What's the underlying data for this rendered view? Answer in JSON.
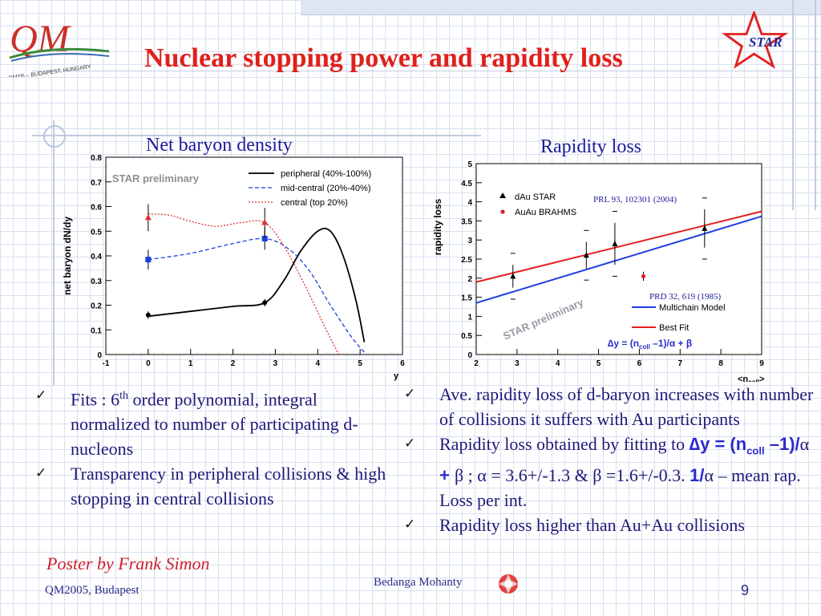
{
  "slide": {
    "title": "Nuclear stopping power and rapidity loss",
    "logo_text": "QM'05 – BUDAPEST, HUNGARY",
    "star_text": "STAR",
    "chart1_caption": "Net baryon density",
    "chart2_caption": "Rapidity loss",
    "poster": "Poster by Frank Simon",
    "footer_left": "QM2005, Budapest",
    "footer_center": "Bedanga Mohanty",
    "page_number": "9"
  },
  "bullets_left": [
    {
      "pre": "Fits : 6",
      "sup": "th",
      "post": " order polynomial, integral normalized to  number of participating d-nucleons"
    },
    {
      "text": "Transparency in peripheral collisions & high stopping in central collisions"
    }
  ],
  "bullets_right": [
    {
      "text": "Ave. rapidity loss of d-baryon increases with number of collisions it suffers with Au participants"
    },
    {
      "a": "Rapidity loss  obtained by fitting to ",
      "b": "∆y = (n",
      "c": "coll",
      "d": " –1)/",
      "e": "α",
      "f": " + ",
      "g": "β",
      "h": " ; ",
      "i": "α",
      "j": " = 3.6+/-1.3 & ",
      "k": "β",
      "l": " =1.6+/-0.3.  ",
      "m": "1/",
      "n": "α",
      "o": " – mean rap. Loss per int."
    },
    {
      "text": "Rapidity loss higher than Au+Au collisions"
    }
  ],
  "chart_data": [
    {
      "type": "line",
      "ylabel": "net baryon dN/dy",
      "xlabel": "y",
      "xlim": [
        -1,
        6
      ],
      "ylim": [
        0,
        0.8
      ],
      "xticks": [
        "-1",
        "0",
        "1",
        "2",
        "3",
        "4",
        "5",
        "6"
      ],
      "yticks": [
        "0",
        "0.1",
        "0.2",
        "0.3",
        "0.4",
        "0.5",
        "0.6",
        "0.7",
        "0.8"
      ],
      "annotation": "STAR preliminary",
      "legend": [
        "peripheral (40%-100%)",
        "mid-central (20%-40%)",
        "central (top 20%)"
      ],
      "series": [
        {
          "name": "peripheral (40%-100%)",
          "color": "#000000",
          "style": "solid",
          "points": [
            [
              0,
              0.16
            ],
            [
              2.75,
              0.21
            ]
          ],
          "errors": [
            0.015,
            0.015
          ],
          "curve": [
            [
              0,
              0.155
            ],
            [
              1,
              0.175
            ],
            [
              2,
              0.195
            ],
            [
              2.75,
              0.21
            ],
            [
              3.2,
              0.3
            ],
            [
              3.6,
              0.42
            ],
            [
              4,
              0.5
            ],
            [
              4.3,
              0.5
            ],
            [
              4.6,
              0.4
            ],
            [
              4.9,
              0.22
            ],
            [
              5.1,
              0.05
            ]
          ]
        },
        {
          "name": "mid-central (20%-40%)",
          "color": "#1d3ee0",
          "style": "dashed",
          "points": [
            [
              0,
              0.385
            ],
            [
              2.75,
              0.47
            ]
          ],
          "errors": [
            0.04,
            0.045
          ],
          "curve": [
            [
              0,
              0.385
            ],
            [
              1,
              0.41
            ],
            [
              2,
              0.45
            ],
            [
              2.75,
              0.47
            ],
            [
              3.3,
              0.43
            ],
            [
              3.8,
              0.34
            ],
            [
              4.3,
              0.2
            ],
            [
              4.8,
              0.07
            ],
            [
              5.15,
              0.0
            ]
          ]
        },
        {
          "name": "central (top 20%)",
          "color": "#e03030",
          "style": "dotted",
          "points": [
            [
              0,
              0.555
            ],
            [
              2.75,
              0.535
            ]
          ],
          "errors": [
            0.055,
            0.06
          ],
          "curve": [
            [
              0,
              0.57
            ],
            [
              0.5,
              0.565
            ],
            [
              1,
              0.54
            ],
            [
              1.6,
              0.52
            ],
            [
              2.2,
              0.535
            ],
            [
              2.75,
              0.535
            ],
            [
              3.2,
              0.44
            ],
            [
              3.7,
              0.28
            ],
            [
              4.2,
              0.1
            ],
            [
              4.5,
              0.0
            ]
          ]
        }
      ]
    },
    {
      "type": "scatter",
      "ylabel": "rapidity loss",
      "xlabel": "<n",
      "xlabel_sub": "coll",
      "xlabel_post": ">",
      "xlim": [
        2,
        9
      ],
      "ylim": [
        0,
        5
      ],
      "xticks": [
        "2",
        "3",
        "4",
        "5",
        "6",
        "7",
        "8",
        "9"
      ],
      "yticks": [
        "0",
        "0.5",
        "1",
        "1.5",
        "2",
        "2.5",
        "3",
        "3.5",
        "4",
        "4.5",
        "5"
      ],
      "annotation": "STAR preliminary",
      "ref1": "PRL 93, 102301 (2004)",
      "ref2": "PRD 32, 619 (1985)",
      "formula": "∆y = (n",
      "formula_sub": "coll",
      "formula_post": " –1)/α + β",
      "legend": [
        "dAu STAR",
        "AuAu BRAHMS",
        "Multichain Model",
        "Best Fit"
      ],
      "series": [
        {
          "name": "dAu STAR",
          "color": "#000000",
          "marker": "triangle",
          "points": [
            [
              2.9,
              2.05
            ],
            [
              4.7,
              2.6
            ],
            [
              5.4,
              2.9
            ],
            [
              7.6,
              3.3
            ]
          ],
          "errors": [
            0.3,
            0.35,
            0.55,
            0.5
          ]
        },
        {
          "name": "AuAu BRAHMS",
          "color": "#e02020",
          "marker": "circle",
          "points": [
            [
              6.1,
              2.05
            ]
          ],
          "errors": [
            0.12
          ]
        },
        {
          "name": "Multichain Model",
          "color": "#1d3ee0",
          "marker": "line",
          "line": [
            [
              2,
              1.35
            ],
            [
              9,
              3.62
            ]
          ]
        },
        {
          "name": "Best Fit",
          "color": "#e02020",
          "marker": "line",
          "line": [
            [
              2,
              1.9
            ],
            [
              9,
              3.75
            ]
          ]
        }
      ]
    }
  ]
}
